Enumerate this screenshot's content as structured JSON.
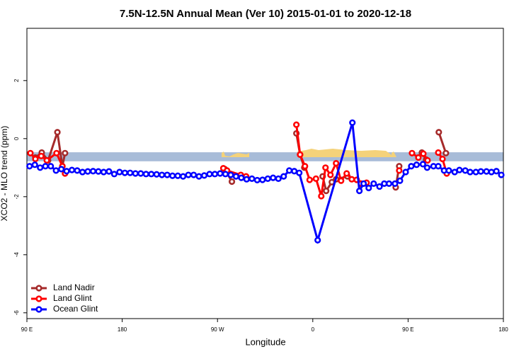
{
  "chart_data": {
    "type": "line",
    "title": "7.5N-12.5N Annual Mean (Ver 10)   2015-01-01 to 2020-12-18",
    "x_label": "Longitude",
    "y_label": "XCO2 - MLO trend (ppm)",
    "xlim": [
      90,
      540
    ],
    "xticks": [
      {
        "value": 90,
        "label": "90 E"
      },
      {
        "value": 180,
        "label": "180"
      },
      {
        "value": 270,
        "label": "90 W"
      },
      {
        "value": 360,
        "label": "0"
      },
      {
        "value": 450,
        "label": "90 E"
      },
      {
        "value": 540,
        "label": "180"
      }
    ],
    "ylim": [
      -6.2,
      3.8
    ],
    "yticks": [
      -6,
      -4,
      -2,
      0,
      2
    ],
    "legend": "lower left",
    "reference_band": [
      -0.78,
      -0.47
    ],
    "band_color": "#a8bcd8",
    "series": [
      {
        "name": "Land Nadir",
        "color": "#a52a2a",
        "x": [
          98,
          104,
          110,
          118.8,
          123.5,
          126,
          null,
          276.9,
          283.6,
          null,
          344.5,
          348,
          352,
          null,
          369.3,
          372.6,
          378,
          382,
          392.7,
          405.5,
          null,
          438.3,
          441.6,
          null,
          463,
          467,
          null,
          479,
          485.7
        ],
        "values": [
          -0.65,
          -0.48,
          -0.75,
          0.22,
          -0.95,
          -0.5,
          null,
          -1.05,
          -1.48,
          null,
          0.18,
          -0.55,
          -1.0,
          null,
          -1.3,
          -1.8,
          -1.5,
          -1.4,
          -1.3,
          -1.55,
          null,
          -1.68,
          -0.95,
          null,
          -0.48,
          -0.72,
          null,
          0.22,
          -0.5
        ]
      },
      {
        "name": "Land Glint",
        "color": "#ff0000",
        "x": [
          93.3,
          98,
          103.5,
          108.8,
          118,
          123.5,
          126,
          null,
          275.5,
          279,
          292,
          297,
          null,
          344.5,
          348,
          352.6,
          357,
          363,
          368,
          372,
          376.7,
          382,
          386.7,
          392,
          396.8,
          401.5,
          405.5,
          410.8,
          null,
          441.6,
          null,
          453.7,
          459.7,
          464.4,
          468.4,
          null,
          478.5,
          482.5,
          486.5
        ],
        "values": [
          -0.5,
          -0.7,
          -0.6,
          -0.75,
          -0.5,
          -0.95,
          -1.2,
          null,
          -1.02,
          -1.1,
          -1.25,
          -1.3,
          null,
          0.48,
          -0.55,
          -0.95,
          -1.42,
          -1.38,
          -1.98,
          -1.0,
          -1.25,
          -0.85,
          -1.45,
          -1.2,
          -1.4,
          -1.42,
          -1.55,
          -1.52,
          null,
          -1.1,
          null,
          -0.5,
          -0.65,
          -0.52,
          -0.75,
          null,
          -0.48,
          -0.7,
          -1.2
        ]
      },
      {
        "name": "Ocean Glint",
        "color": "#0000ff",
        "x": [
          92.5,
          97.5,
          102.5,
          107.5,
          112.5,
          117.5,
          122.5,
          127.5,
          132.5,
          137.5,
          142.5,
          147.5,
          152.5,
          157.5,
          162.5,
          167.5,
          172.5,
          177.5,
          182.5,
          187.5,
          192.5,
          197.5,
          202.5,
          207.5,
          212.5,
          217.5,
          222.5,
          227.5,
          232.5,
          237.5,
          242.5,
          247.5,
          252.5,
          257.5,
          262.5,
          267.5,
          272.5,
          277.5,
          282.5,
          287.5,
          292.5,
          297.5,
          302.5,
          307.5,
          312.5,
          317.5,
          322.5,
          327.5,
          332.5,
          337.8,
          342.5,
          347.2,
          364.6,
          397.4,
          404,
          408,
          412.8,
          417.5,
          423,
          427.5,
          432,
          437.6,
          442.3,
          447.7,
          453,
          458,
          464,
          468,
          474,
          478.5,
          484,
          488.5,
          494,
          498.5,
          504,
          508.6,
          514,
          518.7,
          524,
          528.7,
          533.4,
          538
        ],
        "values": [
          -0.95,
          -0.9,
          -1.0,
          -0.95,
          -0.95,
          -1.1,
          -1.05,
          -1.12,
          -1.08,
          -1.1,
          -1.15,
          -1.13,
          -1.12,
          -1.13,
          -1.15,
          -1.13,
          -1.22,
          -1.15,
          -1.18,
          -1.18,
          -1.2,
          -1.2,
          -1.22,
          -1.22,
          -1.23,
          -1.25,
          -1.25,
          -1.28,
          -1.28,
          -1.3,
          -1.25,
          -1.25,
          -1.3,
          -1.27,
          -1.22,
          -1.22,
          -1.2,
          -1.22,
          -1.25,
          -1.3,
          -1.35,
          -1.4,
          -1.38,
          -1.43,
          -1.42,
          -1.38,
          -1.35,
          -1.38,
          -1.3,
          -1.1,
          -1.12,
          -1.18,
          -3.5,
          0.55,
          -1.8,
          -1.55,
          -1.7,
          -1.55,
          -1.65,
          -1.55,
          -1.55,
          -1.55,
          -1.45,
          -1.15,
          -0.95,
          -0.9,
          -0.88,
          -1.0,
          -0.95,
          -0.95,
          -1.1,
          -1.1,
          -1.15,
          -1.08,
          -1.1,
          -1.15,
          -1.15,
          -1.13,
          -1.13,
          -1.15,
          -1.12,
          -1.25
        ]
      }
    ]
  }
}
